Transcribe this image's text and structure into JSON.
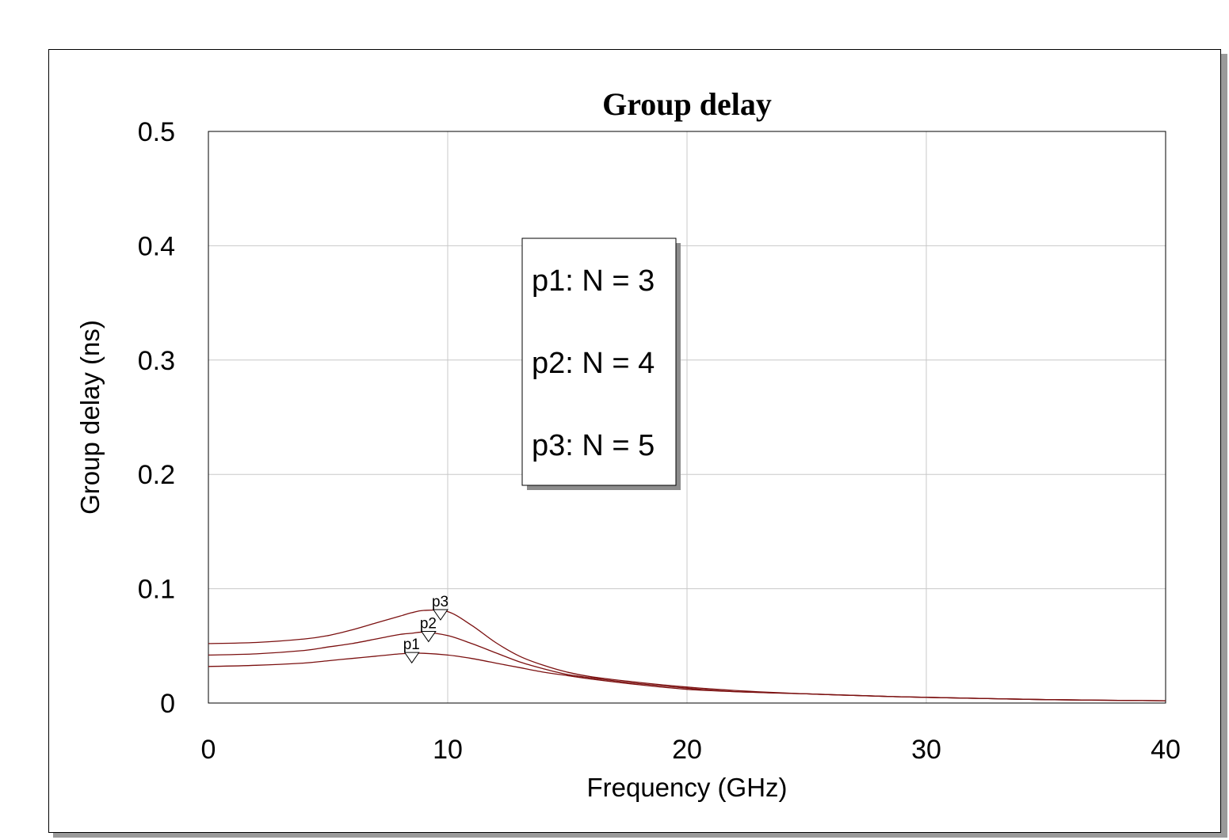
{
  "chart_data": {
    "type": "line",
    "title": "Group delay",
    "xlabel": "Frequency (GHz)",
    "ylabel": "Group delay (ns)",
    "xlim": [
      0,
      40
    ],
    "ylim": [
      0,
      0.5
    ],
    "x_ticks": [
      "0",
      "10",
      "20",
      "30",
      "40"
    ],
    "y_ticks": [
      "0",
      "0.1",
      "0.2",
      "0.3",
      "0.4",
      "0.5"
    ],
    "grid": true,
    "line_color": "#7b1010",
    "x": [
      0,
      2,
      4,
      5,
      6,
      7,
      8,
      8.5,
      9,
      10,
      11,
      12,
      13,
      14,
      15,
      16,
      18,
      20,
      22,
      25,
      28,
      30,
      35,
      40
    ],
    "series": [
      {
        "name": "p1",
        "values": [
          0.032,
          0.033,
          0.035,
          0.037,
          0.039,
          0.041,
          0.043,
          0.0435,
          0.0435,
          0.042,
          0.039,
          0.035,
          0.031,
          0.027,
          0.024,
          0.021,
          0.016,
          0.012,
          0.01,
          0.008,
          0.006,
          0.005,
          0.003,
          0.002
        ]
      },
      {
        "name": "p2",
        "values": [
          0.042,
          0.043,
          0.046,
          0.049,
          0.052,
          0.056,
          0.06,
          0.061,
          0.062,
          0.059,
          0.052,
          0.044,
          0.036,
          0.03,
          0.025,
          0.022,
          0.017,
          0.013,
          0.01,
          0.008,
          0.006,
          0.005,
          0.003,
          0.002
        ]
      },
      {
        "name": "p3",
        "values": [
          0.052,
          0.053,
          0.056,
          0.059,
          0.064,
          0.07,
          0.076,
          0.079,
          0.081,
          0.08,
          0.068,
          0.053,
          0.041,
          0.033,
          0.027,
          0.023,
          0.018,
          0.014,
          0.011,
          0.008,
          0.006,
          0.005,
          0.003,
          0.002
        ]
      }
    ],
    "markers": [
      {
        "label": "p1",
        "x": 8.5,
        "y": 0.0435
      },
      {
        "label": "p2",
        "x": 9.2,
        "y": 0.062
      },
      {
        "label": "p3",
        "x": 9.7,
        "y": 0.081
      }
    ],
    "legend": {
      "placement": "upper-middle",
      "entries": [
        "p1: N = 3",
        "p2: N = 4",
        "p3: N = 5"
      ]
    }
  }
}
